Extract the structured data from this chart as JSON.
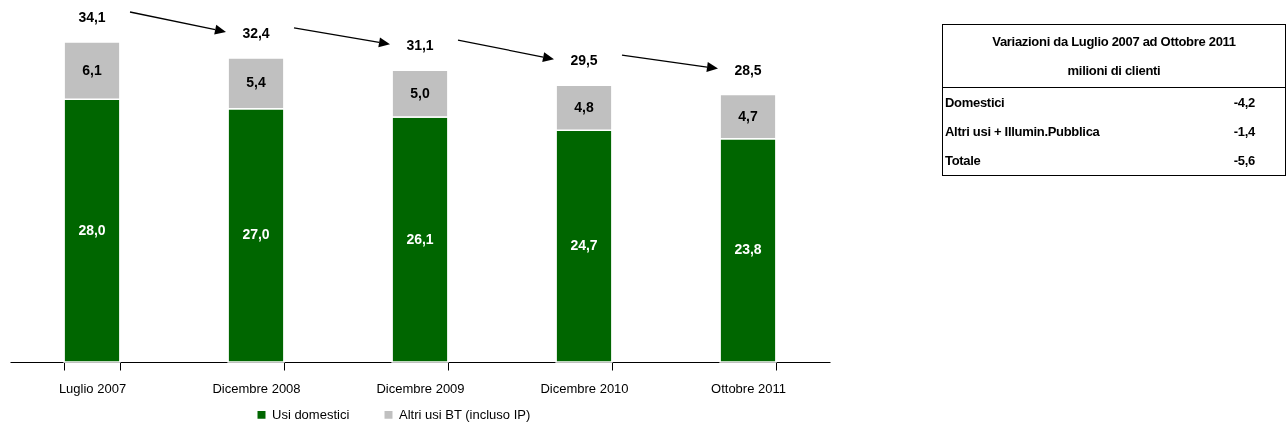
{
  "chart_data": {
    "type": "bar",
    "stacked": true,
    "categories": [
      "Luglio 2007",
      "Dicembre 2008",
      "Dicembre 2009",
      "Dicembre 2010",
      "Ottobre 2011"
    ],
    "series": [
      {
        "name": "Usi domestici",
        "color": "#006600",
        "values": [
          28.0,
          27.0,
          26.1,
          24.7,
          23.8
        ],
        "value_labels": [
          "28,0",
          "27,0",
          "26,1",
          "24,7",
          "23,8"
        ]
      },
      {
        "name": "Altri usi BT (incluso IP)",
        "color": "#c0c0c0",
        "values": [
          6.1,
          5.4,
          5.0,
          4.8,
          4.7
        ],
        "value_labels": [
          "6,1",
          "5,4",
          "5,0",
          "4,8",
          "4,7"
        ]
      }
    ],
    "totals": [
      "34,1",
      "32,4",
      "31,1",
      "29,5",
      "28,5"
    ],
    "legend": "bottom",
    "annotations": [
      "Variazioni da Luglio 2007 ad Ottobre 2011",
      "milioni di clienti",
      "Domestici",
      "-4,2",
      "Altri usi + Illumin.Pubblica",
      "-1,4",
      "Totale",
      "-5,6"
    ]
  }
}
